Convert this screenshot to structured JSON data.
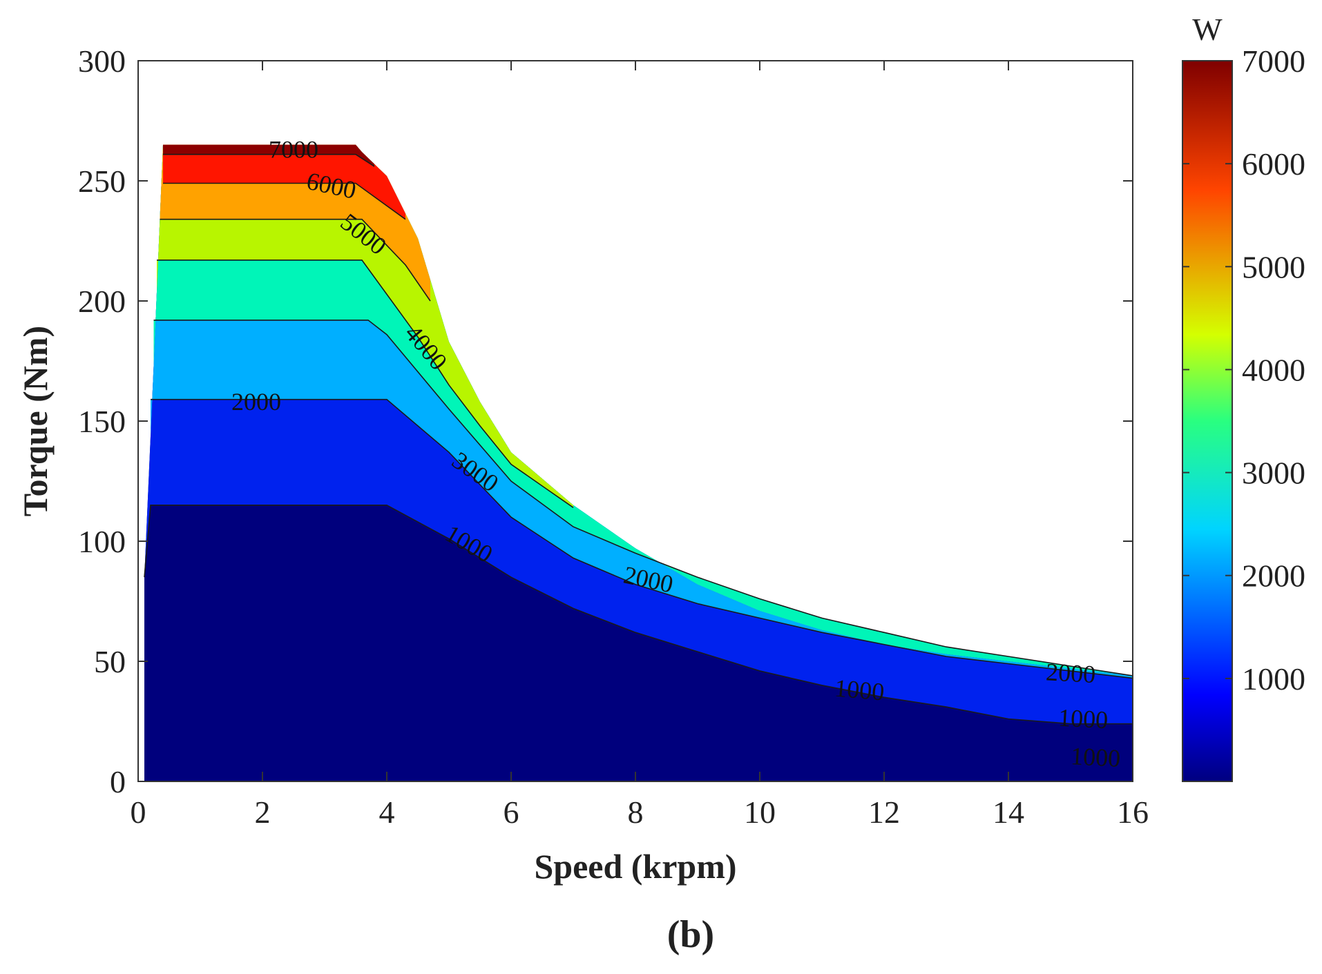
{
  "chart_data": {
    "type": "contour",
    "title": "",
    "xlabel": "Speed (krpm)",
    "ylabel": "Torque (Nm)",
    "xlim": [
      0,
      16
    ],
    "ylim": [
      0,
      300
    ],
    "x_ticks": [
      0,
      2,
      4,
      6,
      8,
      10,
      12,
      14,
      16
    ],
    "y_ticks": [
      0,
      50,
      100,
      150,
      200,
      250,
      300
    ],
    "panel_label": "(b)",
    "colorbar": {
      "title": "W",
      "range": [
        0,
        7000
      ],
      "ticks": [
        1000,
        2000,
        3000,
        4000,
        5000,
        6000,
        7000
      ],
      "colormap": "jet"
    },
    "envelope": {
      "x": [
        0.1,
        0.25,
        0.4,
        3.5,
        3.6,
        4.0,
        4.5,
        5.0,
        5.5,
        6.0,
        7.0,
        8.0,
        9.0,
        10.0,
        11.0,
        12.0,
        13.0,
        14.0,
        15.0,
        16.0
      ],
      "y": [
        85,
        173,
        265,
        265,
        262,
        252,
        226,
        183,
        158,
        137,
        115,
        97,
        82,
        71,
        63,
        57,
        53,
        50,
        47,
        44
      ]
    },
    "levels": [
      {
        "value": 1000,
        "color": "#00007d",
        "boundary": {
          "x": [
            0.1,
            0.2,
            4.0,
            5.0,
            6.0,
            7.0,
            8.0,
            9.0,
            10.0,
            11.0,
            12.0,
            13.0,
            14.0,
            15.0,
            16.0
          ],
          "y": [
            85,
            115,
            115,
            101,
            85,
            72,
            62,
            54,
            46,
            40,
            35,
            31,
            26,
            24,
            24
          ]
        }
      },
      {
        "value": 1500,
        "color": "#0022ee",
        "boundary": {
          "x": [
            0.2,
            4.0,
            5.0,
            6.0,
            7.0,
            8.0,
            9.0,
            10.0,
            11.0,
            12.0,
            13.0,
            14.0,
            15.0,
            16.0
          ],
          "y": [
            159,
            159,
            137,
            110,
            93,
            82,
            74,
            68,
            62,
            57,
            52,
            49,
            46,
            43
          ]
        }
      },
      {
        "value": 2000,
        "color": "#00afff",
        "boundary": {
          "x": [
            0.25,
            3.7,
            4.0,
            5.0,
            6.0,
            7.0,
            8.0,
            9.0,
            10.0,
            11.0,
            12.0,
            13.0,
            14.0,
            15.0,
            16.0
          ],
          "y": [
            192,
            192,
            186,
            155,
            125,
            106,
            95,
            85,
            76,
            68,
            62,
            56,
            52,
            48,
            44
          ]
        }
      },
      {
        "value": 3000,
        "color": "#00f5b8",
        "boundary": {
          "x": [
            0.3,
            3.6,
            4.5,
            5.0,
            5.5,
            6.0,
            6.5,
            7.0
          ],
          "y": [
            217,
            217,
            185,
            165,
            148,
            132,
            123,
            114
          ]
        }
      },
      {
        "value": 4000,
        "color": "#b8f500",
        "boundary": {
          "x": [
            0.35,
            3.6,
            4.3,
            4.7
          ],
          "y": [
            234,
            234,
            215,
            200
          ]
        }
      },
      {
        "value": 5000,
        "color": "#ffa200",
        "boundary": {
          "x": [
            0.4,
            3.5,
            4.3
          ],
          "y": [
            249,
            249,
            234
          ]
        }
      },
      {
        "value": 6000,
        "color": "#ff1500",
        "boundary": {
          "x": [
            0.4,
            3.5,
            3.8
          ],
          "y": [
            261,
            261,
            256
          ]
        }
      },
      {
        "value": 7000,
        "color": "#8c0000"
      }
    ],
    "contour_labels": [
      {
        "text": "7000",
        "x": 2.5,
        "y": 262,
        "angle": 0
      },
      {
        "text": "6000",
        "x": 3.1,
        "y": 247,
        "angle": 12
      },
      {
        "text": "5000",
        "x": 3.6,
        "y": 227,
        "angle": 38
      },
      {
        "text": "4000",
        "x": 4.6,
        "y": 180,
        "angle": 50
      },
      {
        "text": "3000",
        "x": 5.4,
        "y": 128,
        "angle": 35
      },
      {
        "text": "2000",
        "x": 1.9,
        "y": 157,
        "angle": 0
      },
      {
        "text": "1000",
        "x": 5.3,
        "y": 98,
        "angle": 30
      },
      {
        "text": "2000",
        "x": 8.2,
        "y": 83,
        "angle": 12
      },
      {
        "text": "1000",
        "x": 11.6,
        "y": 37,
        "angle": 5
      },
      {
        "text": "2000",
        "x": 15.0,
        "y": 44,
        "angle": 3
      },
      {
        "text": "1000",
        "x": 15.2,
        "y": 25,
        "angle": 3
      },
      {
        "text": "1000",
        "x": 15.4,
        "y": 9,
        "angle": 3
      }
    ]
  }
}
